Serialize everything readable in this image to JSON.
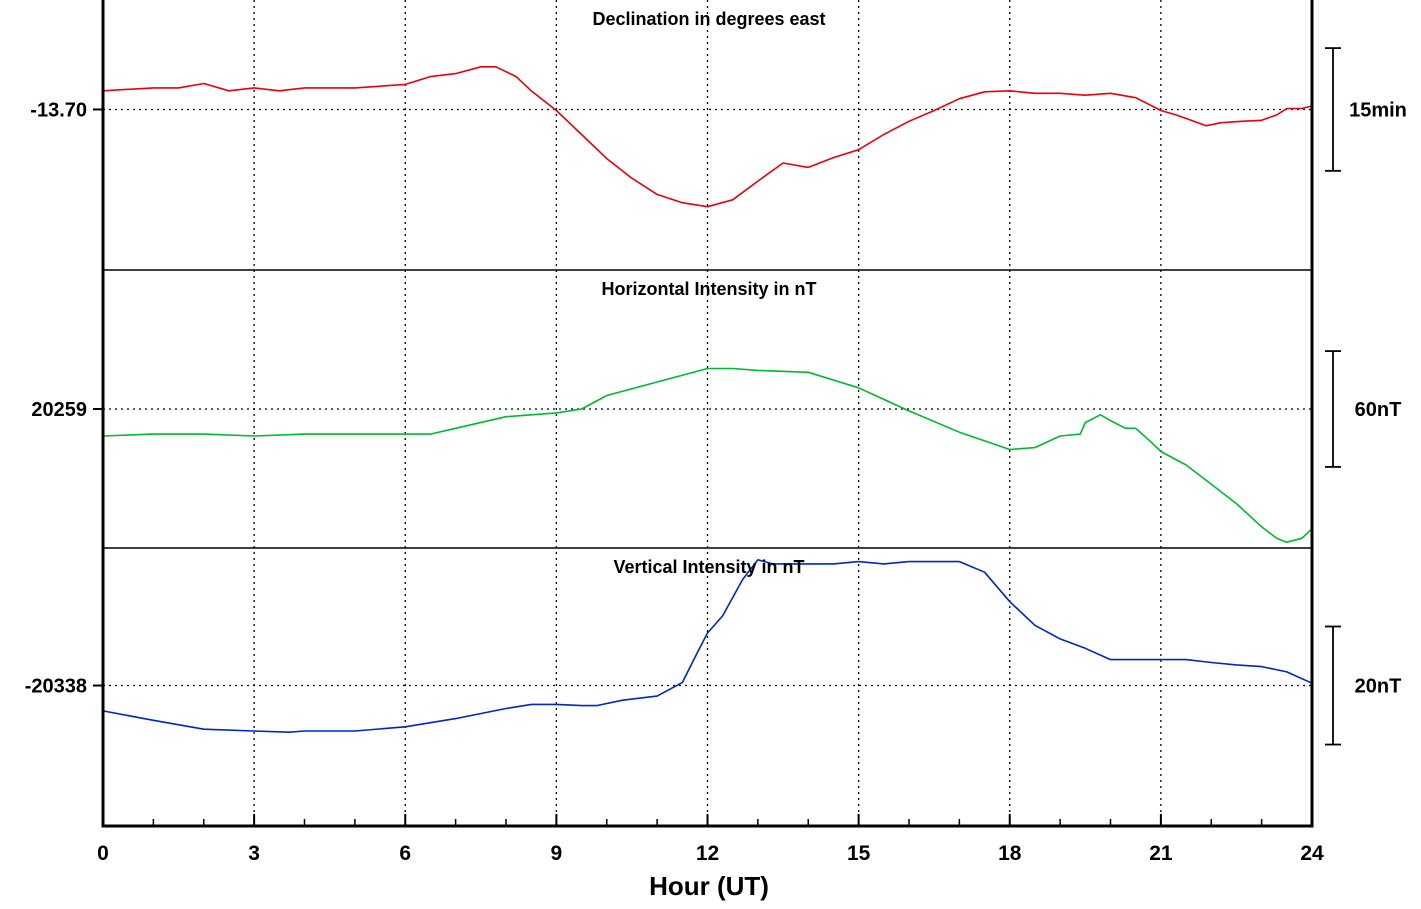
{
  "chart_data": {
    "type": "line",
    "xlabel": "Hour (UT)",
    "xlim": [
      0,
      24
    ],
    "x_ticks": [
      "0",
      "3",
      "6",
      "9",
      "12",
      "15",
      "18",
      "21",
      "24"
    ],
    "x_tick_values": [
      0,
      3,
      6,
      9,
      12,
      15,
      18,
      21,
      24
    ],
    "x_minor_step": 1,
    "grid": true,
    "panels": [
      {
        "title": "Declination in degrees east",
        "baseline_label": "-13.70",
        "baseline_value": -13.7,
        "scale_label": "15min",
        "scale_value": 0.25,
        "unit": "deg",
        "color": "#e8000b",
        "ylim": [
          -14.027,
          -13.477
        ],
        "series": {
          "x": [
            0,
            1,
            1.5,
            2,
            2.5,
            3,
            3.5,
            4,
            5,
            6,
            6.5,
            7,
            7.5,
            7.8,
            8.2,
            8.5,
            9,
            9.5,
            10,
            10.5,
            11,
            11.5,
            12,
            12.5,
            13,
            13.5,
            14,
            14.5,
            15,
            15.5,
            16,
            16.5,
            17,
            17.5,
            18,
            18.5,
            19,
            19.5,
            20,
            20.5,
            21,
            21.3,
            21.6,
            21.9,
            22.2,
            22.6,
            23,
            23.3,
            23.5,
            23.8,
            24
          ],
          "y": [
            -13.662,
            -13.656,
            -13.656,
            -13.647,
            -13.662,
            -13.656,
            -13.662,
            -13.656,
            -13.656,
            -13.649,
            -13.633,
            -13.627,
            -13.613,
            -13.613,
            -13.633,
            -13.662,
            -13.702,
            -13.751,
            -13.8,
            -13.84,
            -13.873,
            -13.89,
            -13.898,
            -13.884,
            -13.846,
            -13.809,
            -13.818,
            -13.798,
            -13.782,
            -13.751,
            -13.724,
            -13.702,
            -13.678,
            -13.664,
            -13.662,
            -13.667,
            -13.667,
            -13.671,
            -13.667,
            -13.676,
            -13.702,
            -13.711,
            -13.722,
            -13.733,
            -13.727,
            -13.724,
            -13.722,
            -13.711,
            -13.698,
            -13.698,
            -13.693
          ]
        }
      },
      {
        "title": "Horizontal Intensity in nT",
        "baseline_label": "20259",
        "baseline_value": 20259,
        "scale_label": "60nT",
        "scale_value": 60,
        "unit": "nT",
        "color": "#00b832",
        "ylim": [
          20187,
          20331
        ],
        "series": {
          "x": [
            0,
            1,
            2,
            3,
            4,
            5,
            6,
            6.5,
            7,
            8,
            9,
            9.5,
            10,
            11,
            12,
            12.5,
            13,
            14,
            15,
            16,
            17,
            18,
            18.5,
            19,
            19.4,
            19.5,
            19.8,
            20,
            20.3,
            20.5,
            20.8,
            21,
            21.5,
            22,
            22.5,
            23,
            23.3,
            23.5,
            23.8,
            24
          ],
          "y": [
            20245,
            20246,
            20246,
            20245,
            20246,
            20246,
            20246,
            20246,
            20249,
            20255,
            20257,
            20259,
            20266,
            20273,
            20280,
            20280,
            20279,
            20278,
            20270,
            20258,
            20247,
            20238,
            20239,
            20245,
            20246,
            20252,
            20256,
            20253,
            20249,
            20249,
            20242,
            20237,
            20230,
            20220,
            20210,
            20198,
            20192,
            20190,
            20192,
            20197
          ]
        }
      },
      {
        "title": "Vertical Intensity in nT",
        "baseline_label": "-20338",
        "baseline_value": -20338,
        "scale_label": "20nT",
        "scale_value": 20,
        "unit": "nT",
        "color": "#0025c8",
        "ylim": [
          -20361.8,
          -20314.7
        ],
        "series": {
          "x": [
            0,
            1,
            2,
            3,
            3.7,
            4,
            5,
            6,
            7,
            8,
            8.5,
            9,
            9.5,
            9.8,
            10.3,
            11,
            11.5,
            11.8,
            12,
            12.3,
            12.7,
            13,
            13.3,
            13.5,
            14,
            14.5,
            15,
            15.5,
            16,
            16.5,
            17,
            17.5,
            18,
            18.5,
            19,
            19.5,
            20,
            20.5,
            21,
            21.5,
            22,
            22.5,
            23,
            23.5,
            24
          ],
          "y": [
            -20342.3,
            -20343.9,
            -20345.4,
            -20345.7,
            -20345.9,
            -20345.7,
            -20345.7,
            -20345.0,
            -20343.6,
            -20341.9,
            -20341.2,
            -20341.2,
            -20341.4,
            -20341.4,
            -20340.5,
            -20339.8,
            -20337.5,
            -20332.4,
            -20329.1,
            -20326.2,
            -20320.0,
            -20316.7,
            -20317.4,
            -20317.4,
            -20317.4,
            -20317.4,
            -20317.0,
            -20317.4,
            -20317.0,
            -20317.0,
            -20317.0,
            -20318.8,
            -20323.8,
            -20327.8,
            -20330.1,
            -20331.7,
            -20333.6,
            -20333.6,
            -20333.6,
            -20333.6,
            -20334.1,
            -20334.5,
            -20334.8,
            -20335.7,
            -20337.6
          ]
        }
      }
    ]
  }
}
